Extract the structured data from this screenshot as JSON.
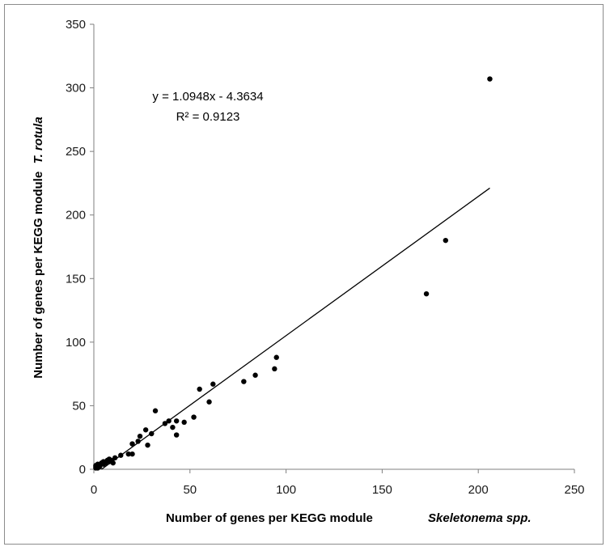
{
  "chart_data": {
    "type": "scatter",
    "title": "",
    "xlabel": "Number of genes per KEGG module",
    "xlabel_italic": "Skeletonema spp.",
    "ylabel": "Number of genes per KEGG module",
    "ylabel_italic": "T. rotula",
    "xlim": [
      0,
      250
    ],
    "ylim": [
      0,
      350
    ],
    "xticks": [
      "0",
      "50",
      "100",
      "150",
      "200",
      "250"
    ],
    "yticks": [
      "0",
      "50",
      "100",
      "150",
      "200",
      "250",
      "300",
      "350"
    ],
    "grid": false,
    "legend": "none",
    "marker_color": "#000000",
    "trendline": {
      "slope": 1.0948,
      "intercept": -4.3634,
      "x_range": [
        0,
        206
      ],
      "equation": "y = 1.0948x - 4.3634",
      "r_squared": "R² = 0.9123"
    },
    "series": [
      {
        "points": [
          [
            1,
            1
          ],
          [
            1,
            2
          ],
          [
            1,
            3
          ],
          [
            2,
            1
          ],
          [
            2,
            2
          ],
          [
            2,
            4
          ],
          [
            3,
            2
          ],
          [
            3,
            3
          ],
          [
            4,
            5
          ],
          [
            5,
            4
          ],
          [
            5,
            6
          ],
          [
            6,
            5
          ],
          [
            7,
            7
          ],
          [
            8,
            6
          ],
          [
            8,
            8
          ],
          [
            9,
            7
          ],
          [
            10,
            5
          ],
          [
            11,
            9
          ],
          [
            14,
            11
          ],
          [
            18,
            12
          ],
          [
            20,
            12
          ],
          [
            20,
            20
          ],
          [
            23,
            22
          ],
          [
            24,
            26
          ],
          [
            27,
            31
          ],
          [
            28,
            19
          ],
          [
            30,
            28
          ],
          [
            32,
            46
          ],
          [
            37,
            36
          ],
          [
            39,
            38
          ],
          [
            41,
            33
          ],
          [
            43,
            38
          ],
          [
            43,
            27
          ],
          [
            47,
            37
          ],
          [
            52,
            41
          ],
          [
            55,
            63
          ],
          [
            60,
            53
          ],
          [
            62,
            67
          ],
          [
            78,
            69
          ],
          [
            84,
            74
          ],
          [
            94,
            79
          ],
          [
            95,
            88
          ],
          [
            173,
            138
          ],
          [
            183,
            180
          ],
          [
            206,
            307
          ]
        ]
      }
    ]
  }
}
